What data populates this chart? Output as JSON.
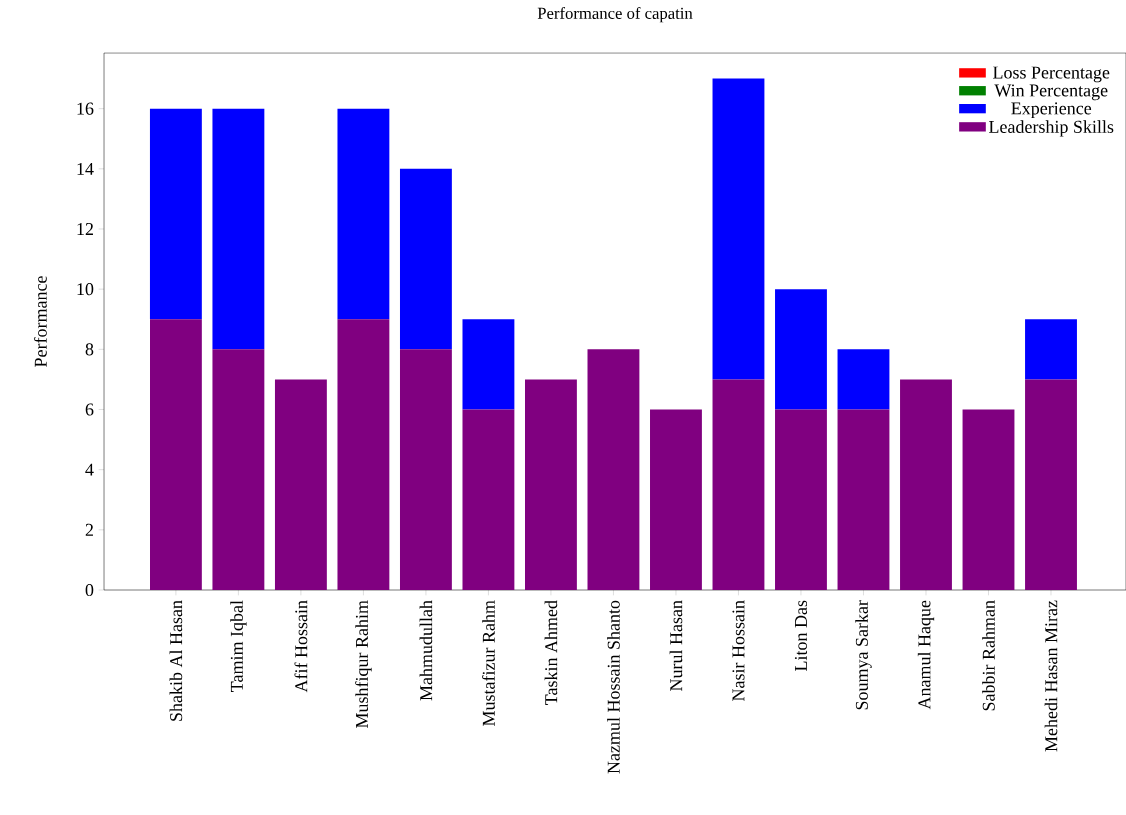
{
  "chart_data": {
    "type": "bar",
    "title": "Performance of capatin",
    "ylabel": "Performance",
    "categories": [
      "Shakib Al Hasan",
      "Tamim Iqbal",
      "Afif Hossain",
      "Mushfiqur Rahim",
      "Mahmudullah",
      "Mustafizur Rahm",
      "Taskin Ahmed",
      "Nazmul Hossain Shanto",
      "Nurul Hasan",
      "Nasir Hossain",
      "Liton Das",
      "Soumya Sarkar",
      "Anamul Haque",
      "Sabbir Rahman",
      "Mehedi Hasan Miraz"
    ],
    "stacked": true,
    "series": [
      {
        "name": "Leadership Skills",
        "color": "#800080",
        "values": [
          9,
          8,
          7,
          9,
          8,
          6,
          7,
          8,
          6,
          7,
          6,
          6,
          7,
          6,
          7
        ]
      },
      {
        "name": "Experience",
        "color": "#0000ff",
        "values": [
          7,
          8,
          0,
          7,
          6,
          3,
          0,
          0,
          0,
          10,
          4,
          2,
          0,
          0,
          2
        ]
      },
      {
        "name": "Win Percentage",
        "color": "#008000",
        "values": [
          null,
          null,
          null,
          null,
          null,
          null,
          null,
          null,
          null,
          null,
          null,
          null,
          null,
          null,
          null
        ]
      },
      {
        "name": "Loss Percentage",
        "color": "#ff0000",
        "values": [
          null,
          null,
          null,
          null,
          null,
          null,
          null,
          null,
          null,
          null,
          null,
          null,
          null,
          null,
          null
        ]
      }
    ],
    "ylim": [
      0,
      17.85
    ],
    "yticks": [
      0,
      2,
      4,
      6,
      8,
      10,
      12,
      14,
      16
    ],
    "grid": false,
    "legend": "top right"
  }
}
